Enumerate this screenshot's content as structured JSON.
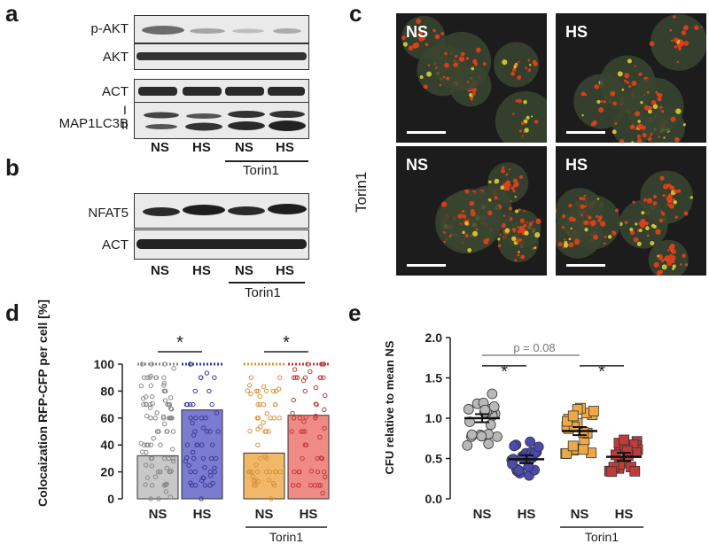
{
  "panels": {
    "a": "a",
    "b": "b",
    "c": "c",
    "d": "d",
    "e": "e"
  },
  "panel_a": {
    "rows": [
      "p-AKT",
      "AKT",
      "ACT",
      "MAP1LC3B"
    ],
    "lc3_bands": [
      "I",
      "II"
    ],
    "lanes": [
      "NS",
      "HS",
      "NS",
      "HS"
    ],
    "treatment": "Torin1"
  },
  "panel_b": {
    "rows": [
      "NFAT5",
      "ACT"
    ],
    "lanes": [
      "NS",
      "HS",
      "NS",
      "HS"
    ],
    "treatment": "Torin1"
  },
  "panel_c": {
    "tiles": [
      "NS",
      "HS",
      "NS",
      "HS"
    ],
    "side_label": "Torin1",
    "colors": {
      "rfp": "#e0401a",
      "merge": "#d8d030",
      "background": "#1c1c1c",
      "cell": "#3a4530"
    }
  },
  "chart_data": [
    {
      "type": "bar",
      "panel": "d",
      "ylabel": "Colocaization RFP-CFP per cell [%]",
      "ylim": [
        0,
        100
      ],
      "yticks": [
        "0",
        "20",
        "40",
        "60",
        "80",
        "100"
      ],
      "categories": [
        "NS",
        "HS",
        "NS",
        "HS"
      ],
      "values": [
        32,
        66,
        34,
        62
      ],
      "colors": [
        "#c8c8c8",
        "#7b7bd0",
        "#f2b86a",
        "#f08a84"
      ],
      "dot_colors": [
        "#888888",
        "#3c3c9c",
        "#d9923a",
        "#c23b3b"
      ],
      "significance": [
        "*",
        "*"
      ],
      "group_label": "Torin1"
    },
    {
      "type": "scatter",
      "panel": "e",
      "ylabel": "CFU relative to mean NS",
      "ylim": [
        0,
        2.0
      ],
      "yticks": [
        "0.0",
        "0.5",
        "1.0",
        "1.5",
        "2.0"
      ],
      "categories": [
        "NS",
        "HS",
        "NS",
        "HS"
      ],
      "means": [
        1.0,
        0.49,
        0.84,
        0.52
      ],
      "colors": [
        "#b8b8b8",
        "#4a4ab0",
        "#f0a845",
        "#c23b3b"
      ],
      "significance": [
        "*",
        "*"
      ],
      "pvalue": "p = 0.08",
      "group_label": "Torin1"
    }
  ]
}
